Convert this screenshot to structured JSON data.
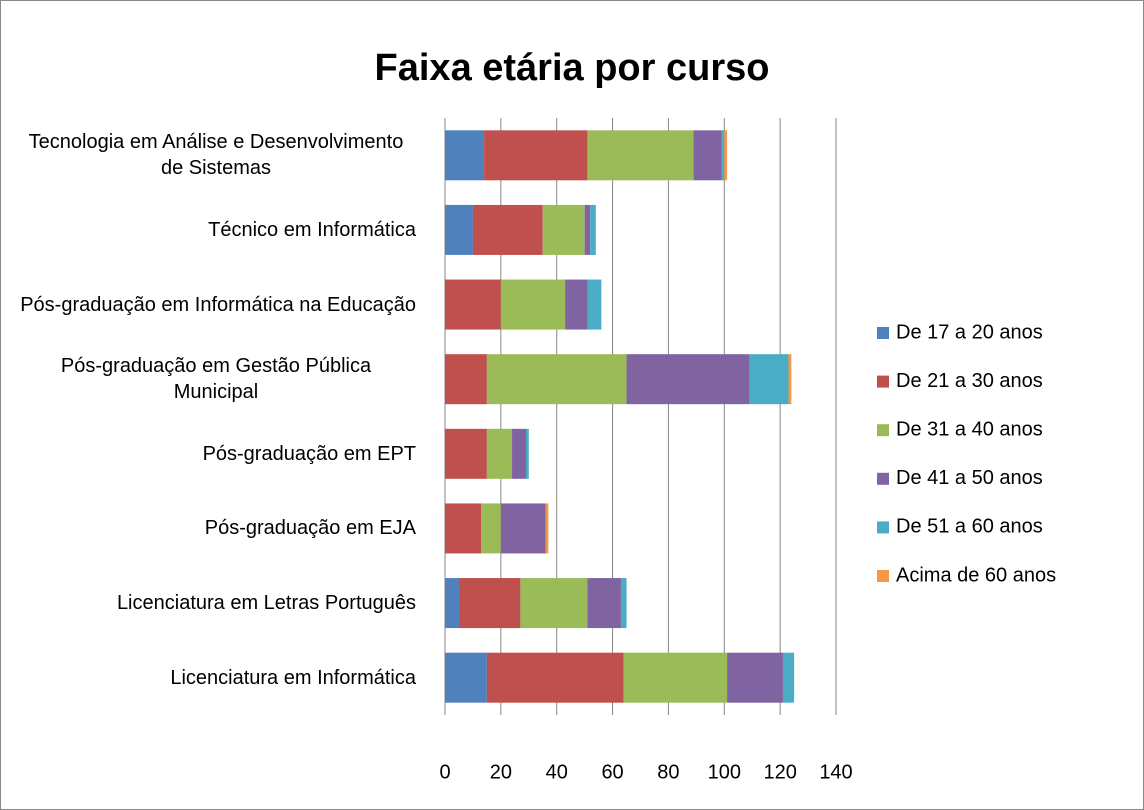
{
  "chart_data": {
    "type": "stacked_bar_horizontal",
    "title": "Faixa etária por curso",
    "categories": [
      "Tecnologia em Análise e Desenvolvimento de Sistemas",
      "Técnico em Informática",
      "Pós-graduação em Informática na Educação",
      "Pós-graduação em Gestão Pública Municipal",
      "Pós-graduação em EPT",
      "Pós-graduação em EJA",
      "Licenciatura em Letras Português",
      "Licenciatura em Informática"
    ],
    "series": [
      {
        "name": "De 17 a 20 anos",
        "color": "#4f81bd",
        "values": [
          14,
          10,
          0,
          0,
          0,
          0,
          5,
          15
        ]
      },
      {
        "name": "De 21 a 30 anos",
        "color": "#c0504d",
        "values": [
          37,
          25,
          20,
          15,
          15,
          13,
          22,
          49
        ]
      },
      {
        "name": "De 31 a 40 anos",
        "color": "#9bbb59",
        "values": [
          38,
          15,
          23,
          50,
          9,
          7,
          24,
          37
        ]
      },
      {
        "name": "De 41 a 50 anos",
        "color": "#8064a2",
        "values": [
          10,
          2,
          8,
          44,
          5,
          16,
          12,
          20
        ]
      },
      {
        "name": "De 51 a 60 anos",
        "color": "#4bacc6",
        "values": [
          1,
          2,
          5,
          14,
          1,
          0,
          2,
          4
        ]
      },
      {
        "name": "Acima de 60 anos",
        "color": "#f79646",
        "values": [
          1,
          0,
          0,
          1,
          0,
          1,
          0,
          0
        ]
      }
    ],
    "xlim": [
      0,
      140
    ],
    "xticks": [
      0,
      20,
      40,
      60,
      80,
      100,
      120,
      140
    ],
    "grid": true,
    "legend": "right"
  }
}
